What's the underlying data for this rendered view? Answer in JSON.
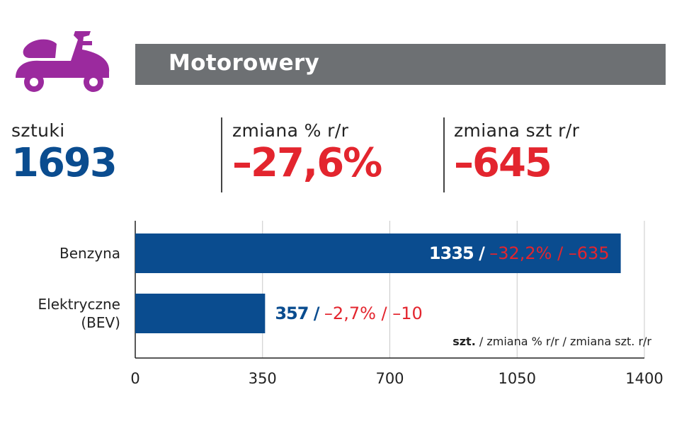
{
  "header": {
    "title": "Motorowery",
    "icon": "scooter-icon",
    "icon_color": "#9b2a9e",
    "bar_color": "#6d7073"
  },
  "stats": [
    {
      "label": "sztuki",
      "value": "1693",
      "color": "#0a4c8f"
    },
    {
      "label": "zmiana % r/r",
      "value": "–27,6%",
      "color": "#e3252e"
    },
    {
      "label": "zmiana szt r/r",
      "value": "–645",
      "color": "#e3252e"
    }
  ],
  "chart_data": {
    "type": "bar",
    "orientation": "horizontal",
    "categories": [
      [
        "Benzyna"
      ],
      [
        "Elektryczne",
        "(BEV)"
      ]
    ],
    "values": [
      1335,
      357
    ],
    "value_labels": [
      {
        "units": "1335",
        "sep": " / ",
        "change": "–32,2% / –635"
      },
      {
        "units": "357",
        "sep": " / ",
        "change": "–2,7% / –10"
      }
    ],
    "xlim": [
      0,
      1400
    ],
    "xticks": [
      0,
      350,
      700,
      1050,
      1400
    ],
    "grid": true,
    "bar_color": "#0a4c8f",
    "legend": {
      "bold": "szt.",
      "rest": " / zmiana % r/r / zmiana szt. r/r"
    }
  }
}
